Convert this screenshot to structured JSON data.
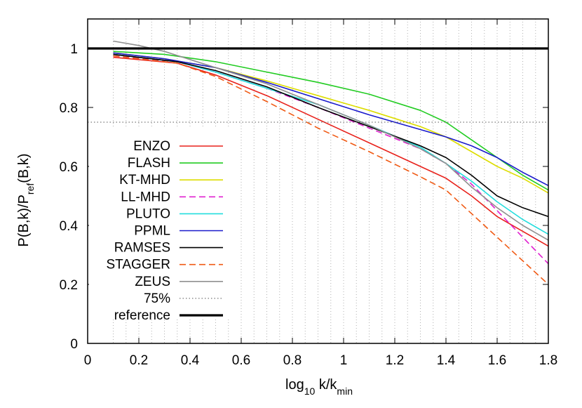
{
  "chart_data": {
    "type": "line",
    "xlabel": {
      "base": "log",
      "sub1": "10",
      "mid": " k/k",
      "sub2": "min"
    },
    "ylabel": {
      "base": "P(B,k)/P",
      "sub1": "ref",
      "tail": "(B,k)"
    },
    "xlim": [
      0,
      1.8
    ],
    "ylim": [
      0,
      1.1
    ],
    "xticks": [
      0,
      0.2,
      0.4,
      0.6,
      0.8,
      1,
      1.2,
      1.4,
      1.6,
      1.8
    ],
    "xtick_labels": [
      "0",
      "0.2",
      "0.4",
      "0.6",
      "0.8",
      "1",
      "1.2",
      "1.4",
      "1.6",
      "1.8"
    ],
    "yticks": [
      0,
      0.2,
      0.4,
      0.6,
      0.8,
      1
    ],
    "ytick_labels": [
      "0",
      "0.2",
      "0.4",
      "0.6",
      "0.8",
      "1"
    ],
    "vertical_gridlines": [
      0.1,
      0.15,
      0.2,
      0.25,
      0.3,
      0.35,
      0.4,
      0.45,
      0.5,
      0.55,
      0.6,
      0.65,
      0.7,
      0.75,
      0.8,
      0.85,
      0.9,
      0.95,
      1.0,
      1.05,
      1.1,
      1.15,
      1.2,
      1.25,
      1.3,
      1.35,
      1.4,
      1.45,
      1.5,
      1.55,
      1.6,
      1.65,
      1.7,
      1.75
    ],
    "legend_position": "left-center",
    "series": [
      {
        "name": "ENZO",
        "color": "#e8221c",
        "dash": "solid",
        "x": [
          0.1,
          0.35,
          0.5,
          0.7,
          0.9,
          1.1,
          1.3,
          1.4,
          1.5,
          1.6,
          1.7,
          1.8
        ],
        "y": [
          0.97,
          0.95,
          0.91,
          0.84,
          0.76,
          0.68,
          0.6,
          0.56,
          0.5,
          0.43,
          0.38,
          0.33
        ]
      },
      {
        "name": "FLASH",
        "color": "#22cc22",
        "dash": "solid",
        "x": [
          0.1,
          0.3,
          0.5,
          0.7,
          0.9,
          1.1,
          1.3,
          1.4,
          1.5,
          1.6,
          1.7,
          1.8
        ],
        "y": [
          0.99,
          0.98,
          0.955,
          0.92,
          0.885,
          0.845,
          0.79,
          0.75,
          0.69,
          0.63,
          0.57,
          0.52
        ]
      },
      {
        "name": "KT-MHD",
        "color": "#dddd00",
        "dash": "solid",
        "x": [
          0.1,
          0.3,
          0.5,
          0.7,
          0.9,
          1.1,
          1.3,
          1.4,
          1.5,
          1.6,
          1.7,
          1.8
        ],
        "y": [
          0.985,
          0.965,
          0.935,
          0.89,
          0.84,
          0.79,
          0.735,
          0.7,
          0.65,
          0.6,
          0.56,
          0.51
        ]
      },
      {
        "name": "LL-MHD",
        "color": "#e020d0",
        "dash": "dashed",
        "x": [
          0.1,
          0.35,
          0.5,
          0.7,
          0.9,
          1.1,
          1.3,
          1.4,
          1.5,
          1.6,
          1.7,
          1.8
        ],
        "y": [
          0.975,
          0.955,
          0.92,
          0.865,
          0.8,
          0.73,
          0.66,
          0.61,
          0.54,
          0.45,
          0.36,
          0.27
        ]
      },
      {
        "name": "PLUTO",
        "color": "#22dddd",
        "dash": "solid",
        "x": [
          0.1,
          0.35,
          0.5,
          0.7,
          0.9,
          1.1,
          1.3,
          1.4,
          1.5,
          1.6,
          1.7,
          1.8
        ],
        "y": [
          0.98,
          0.955,
          0.92,
          0.865,
          0.81,
          0.74,
          0.665,
          0.61,
          0.55,
          0.48,
          0.42,
          0.37
        ]
      },
      {
        "name": "PPML",
        "color": "#1a1acc",
        "dash": "solid",
        "x": [
          0.1,
          0.3,
          0.5,
          0.7,
          0.9,
          1.1,
          1.3,
          1.4,
          1.5,
          1.6,
          1.7,
          1.8
        ],
        "y": [
          0.985,
          0.965,
          0.935,
          0.885,
          0.83,
          0.775,
          0.725,
          0.7,
          0.67,
          0.63,
          0.58,
          0.535
        ]
      },
      {
        "name": "RAMSES",
        "color": "#000000",
        "dash": "solid",
        "x": [
          0.1,
          0.35,
          0.5,
          0.7,
          0.9,
          1.1,
          1.3,
          1.4,
          1.5,
          1.6,
          1.7,
          1.8
        ],
        "y": [
          0.98,
          0.955,
          0.925,
          0.87,
          0.8,
          0.735,
          0.67,
          0.63,
          0.57,
          0.5,
          0.46,
          0.43
        ]
      },
      {
        "name": "STAGGER",
        "color": "#f05a14",
        "dash": "dashed",
        "x": [
          0.1,
          0.35,
          0.5,
          0.7,
          0.9,
          1.1,
          1.3,
          1.4,
          1.5,
          1.6,
          1.7,
          1.8
        ],
        "y": [
          0.975,
          0.95,
          0.905,
          0.82,
          0.73,
          0.65,
          0.565,
          0.52,
          0.44,
          0.36,
          0.28,
          0.2
        ]
      },
      {
        "name": "ZEUS",
        "color": "#909090",
        "dash": "solid",
        "x": [
          0.1,
          0.2,
          0.3,
          0.5,
          0.7,
          0.9,
          1.1,
          1.3,
          1.4,
          1.5,
          1.6,
          1.7,
          1.8
        ],
        "y": [
          1.025,
          1.01,
          0.99,
          0.935,
          0.88,
          0.81,
          0.74,
          0.66,
          0.61,
          0.53,
          0.46,
          0.4,
          0.35
        ]
      },
      {
        "name": "75%",
        "color": "#555555",
        "dash": "dotted",
        "x": [
          0,
          1.8
        ],
        "y": [
          0.75,
          0.75
        ]
      },
      {
        "name": "reference",
        "color": "#000000",
        "dash": "thick",
        "x": [
          0,
          1.8
        ],
        "y": [
          1,
          1
        ]
      }
    ]
  }
}
